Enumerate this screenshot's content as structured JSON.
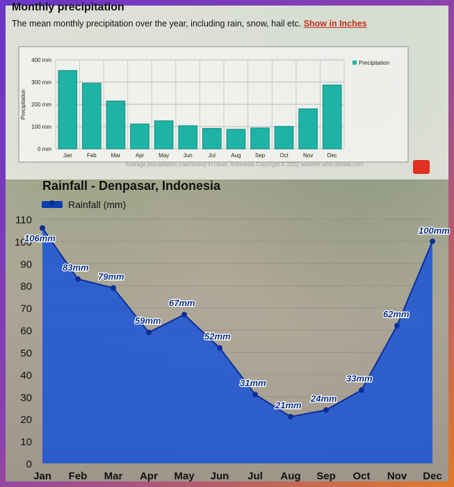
{
  "top_chart": {
    "title": "Monthly precipitation",
    "description": "The mean monthly precipitation over the year, including rain, snow, hail etc.",
    "link_label": "Show in Inches",
    "credit": "Average precipitation (rain/snow) in Ubud, Indonesia   Copyright © 2022  weather-and-climate.com",
    "colors": {
      "bar": "#1fb3a6",
      "bar_stroke": "#0f8a80"
    }
  },
  "bottom_chart": {
    "title": "Rainfall - Denpasar, Indonesia",
    "legend_label": "Rainfall (mm)",
    "colors": {
      "area": "#1450d8",
      "line": "#0a2f9a",
      "label": "#0a2f8a"
    }
  },
  "chart_data": [
    {
      "type": "bar",
      "categories": [
        "Jan",
        "Feb",
        "Mar",
        "Apr",
        "May",
        "Jun",
        "Jul",
        "Aug",
        "Sep",
        "Oct",
        "Nov",
        "Dec"
      ],
      "series": [
        {
          "name": "Precipitation",
          "values": [
            352,
            295,
            215,
            112,
            126,
            104,
            92,
            88,
            94,
            101,
            180,
            287
          ]
        }
      ],
      "ylabel": "Precipitation",
      "yticks": [
        "0 mm",
        "100 mm",
        "200 mm",
        "300 mm",
        "400 mm"
      ],
      "ylim": [
        0,
        400
      ],
      "grid": true,
      "legend": "top-right"
    },
    {
      "type": "area",
      "categories": [
        "Jan",
        "Feb",
        "Mar",
        "Apr",
        "May",
        "Jun",
        "Jul",
        "Aug",
        "Sep",
        "Oct",
        "Nov",
        "Dec"
      ],
      "series": [
        {
          "name": "Rainfall (mm)",
          "values": [
            106,
            83,
            79,
            59,
            67,
            52,
            31,
            21,
            24,
            33,
            62,
            100
          ]
        }
      ],
      "data_labels": [
        "106mm",
        "83mm",
        "79mm",
        "59mm",
        "67mm",
        "52mm",
        "31mm",
        "21mm",
        "24mm",
        "33mm",
        "62mm",
        "100mm"
      ],
      "yticks": [
        "0",
        "10",
        "20",
        "30",
        "40",
        "50",
        "60",
        "70",
        "80",
        "90",
        "100",
        "110"
      ],
      "ylim": [
        0,
        110
      ],
      "grid": true,
      "legend": "top-left"
    }
  ]
}
